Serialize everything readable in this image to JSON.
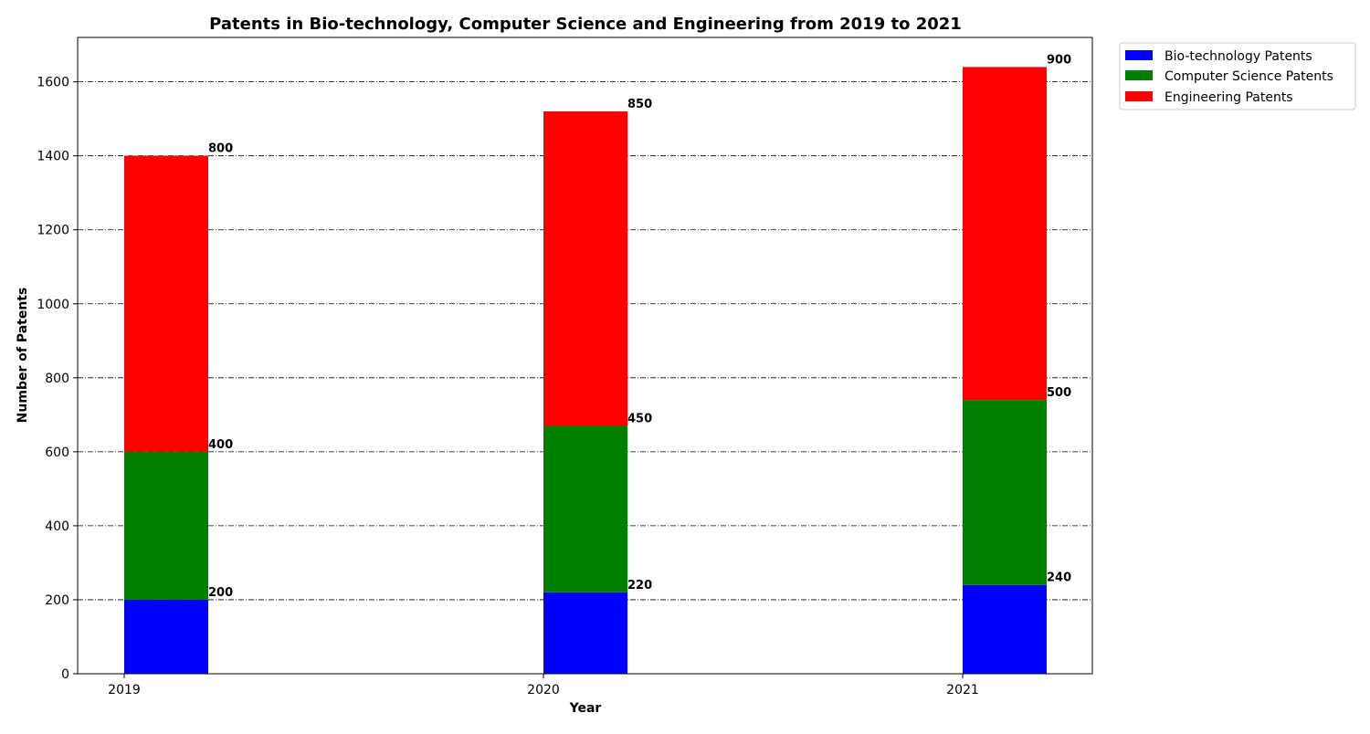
{
  "chart_data": {
    "type": "bar",
    "stacked": true,
    "title": "Patents in Bio-technology, Computer Science and Engineering from 2019 to 2021",
    "xlabel": "Year",
    "ylabel": "Number of Patents",
    "categories": [
      "2019",
      "2020",
      "2021"
    ],
    "series": [
      {
        "name": "Bio-technology Patents",
        "color": "#0000ff",
        "values": [
          200,
          220,
          240
        ]
      },
      {
        "name": "Computer Science Patents",
        "color": "#008000",
        "values": [
          400,
          450,
          500
        ]
      },
      {
        "name": "Engineering Patents",
        "color": "#ff0000",
        "values": [
          800,
          850,
          900
        ]
      }
    ],
    "ylim": [
      0,
      1720
    ],
    "yticks": [
      0,
      200,
      400,
      600,
      800,
      1000,
      1200,
      1400,
      1600
    ],
    "grid": true,
    "legend_position": "outside top-right"
  }
}
